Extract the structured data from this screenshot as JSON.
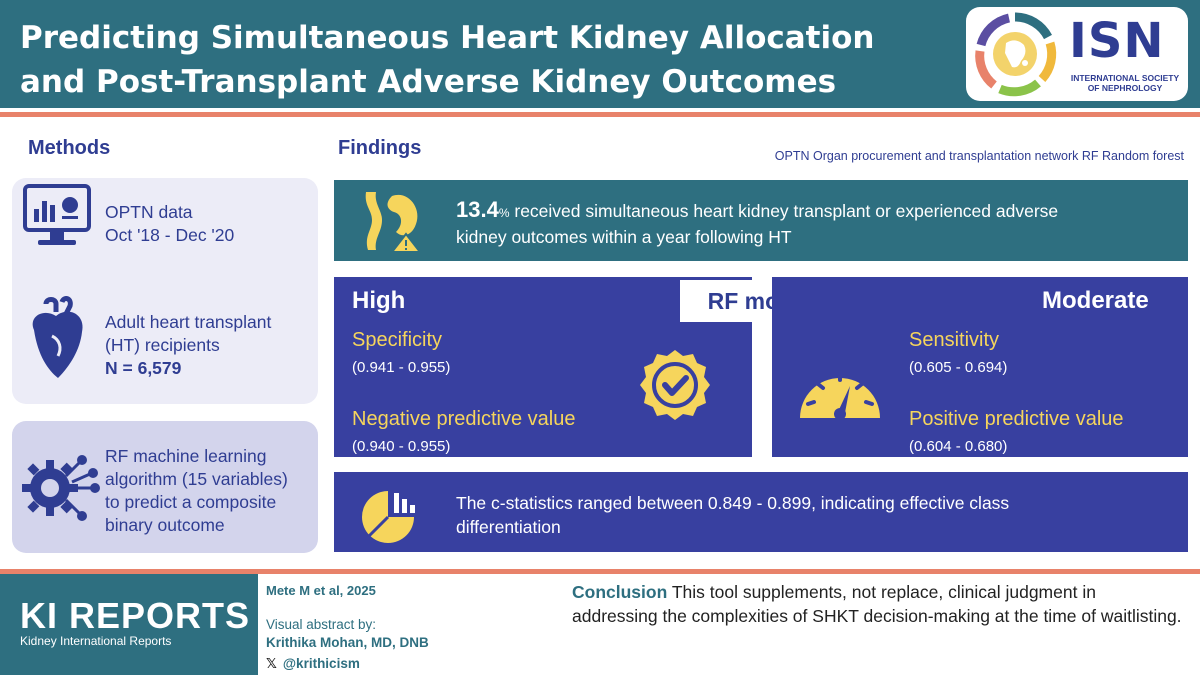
{
  "header": {
    "title_line1": "Predicting Simultaneous Heart Kidney Allocation",
    "title_line2": "and Post-Transplant Adverse Kidney Outcomes"
  },
  "logo": {
    "letters": "ISN",
    "subtitle": "INTERNATIONAL SOCIETY OF NEPHROLOGY"
  },
  "methods": {
    "title": "Methods",
    "data_source": {
      "line1": "OPTN data",
      "line2": "Oct '18 - Dec '20",
      "icon": "monitor-chart-icon"
    },
    "population": {
      "line1": "Adult heart transplant",
      "line2": "(HT) recipients",
      "n": "N = 6,579",
      "icon": "heart-icon"
    },
    "algorithm": {
      "line1": "RF machine learning",
      "line2": "algorithm (15 variables)",
      "line3": "to predict a composite",
      "line4": "binary outcome",
      "icon": "gear-network-icon"
    }
  },
  "findings": {
    "title": "Findings",
    "abbreviations": "OPTN Organ procurement and transplantation network  RF Random forest",
    "headline": {
      "value": "13.4",
      "unit": "%",
      "text_line1": " received simultaneous heart kidney transplant or experienced adverse",
      "text_line2": "kidney outcomes within a year following HT",
      "icon": "kidney-warning-icon"
    },
    "rf_model_label": "RF model",
    "high": {
      "label": "High",
      "metric1": "Specificity",
      "range1": "(0.941 - 0.955)",
      "metric2": "Negative predictive value",
      "range2": "(0.940 - 0.955)",
      "icon": "check-badge-icon"
    },
    "moderate": {
      "label": "Moderate",
      "metric1": "Sensitivity",
      "range1": "(0.605 - 0.694)",
      "metric2": "Positive predictive value",
      "range2": "(0.604 - 0.680)",
      "icon": "gauge-icon"
    },
    "cstat": {
      "line1": "The c-statistics ranged between 0.849 - 0.899, indicating effective class",
      "line2": "differentiation",
      "icon": "pie-bar-chart-icon"
    }
  },
  "footer": {
    "journal": "KI REPORTS",
    "journal_sub": "Kidney International Reports",
    "citation": "Mete M et al, 2025",
    "visual_by": "Visual abstract by:",
    "author": "Krithika Mohan, MD, DNB",
    "handle": "@krithicism",
    "conclusion_label": "Conclusion",
    "conclusion_text": " This tool supplements, not replace, clinical judgment in addressing the complexities of SHKT decision-making at the time of waitlisting."
  },
  "colors": {
    "teal": "#2e6f80",
    "navy": "#2f3d92",
    "box_blue": "#3840a0",
    "yellow": "#f6d55c",
    "coral": "#e8826a"
  }
}
